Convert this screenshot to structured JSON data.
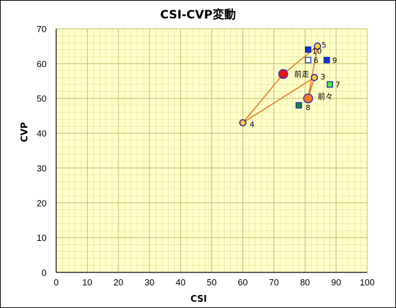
{
  "chart_data": {
    "type": "scatter",
    "title": "CSI-CVP変動",
    "xlabel": "CSI",
    "ylabel": "CVP",
    "xlim": [
      0,
      100
    ],
    "ylim": [
      0,
      70
    ],
    "xticks": [
      "0",
      "10",
      "20",
      "30",
      "40",
      "50",
      "60",
      "70",
      "80",
      "90",
      "100"
    ],
    "yticks": [
      "0",
      "10",
      "20",
      "30",
      "40",
      "50",
      "60",
      "70"
    ],
    "grid": true,
    "plot_background": "#ffffc8",
    "major_grid_color": "#bdbd6a",
    "minor_grid_color": "#e0e0a0",
    "line_color": "#ee7722",
    "path": [
      "前走",
      "5",
      "前々",
      "3",
      "4",
      "前走"
    ],
    "points": [
      {
        "label": "前走",
        "x": 73,
        "y": 57,
        "shape": "circle",
        "fill": "#ee1111",
        "stroke": "#3333bb",
        "size": "large"
      },
      {
        "label": "前々",
        "x": 81,
        "y": 50,
        "shape": "circle",
        "fill": "#ff7722",
        "stroke": "#3333bb",
        "size": "large"
      },
      {
        "label": "3",
        "x": 83,
        "y": 56,
        "shape": "circle",
        "fill": "#ffcc33",
        "stroke": "#2222aa",
        "size": "small"
      },
      {
        "label": "4",
        "x": 60,
        "y": 43,
        "shape": "circle",
        "fill": "#ffcc33",
        "stroke": "#2222aa",
        "size": "small"
      },
      {
        "label": "5",
        "x": 84,
        "y": 65,
        "shape": "circle",
        "fill": "#ffcc33",
        "stroke": "#2222aa",
        "size": "small"
      },
      {
        "label": "6",
        "x": 81,
        "y": 61,
        "shape": "square",
        "fill": "#ffffff",
        "stroke": "#1133aa",
        "size": "small"
      },
      {
        "label": "7",
        "x": 88,
        "y": 54,
        "shape": "square",
        "fill": "#44ee44",
        "stroke": "#1133aa",
        "size": "small"
      },
      {
        "label": "8",
        "x": 78,
        "y": 48,
        "shape": "square",
        "fill": "#228833",
        "stroke": "#1133aa",
        "size": "small"
      },
      {
        "label": "9",
        "x": 87,
        "y": 61,
        "shape": "square",
        "fill": "#1133cc",
        "stroke": "#1133aa",
        "size": "small"
      },
      {
        "label": "10",
        "x": 81,
        "y": 64,
        "shape": "square",
        "fill": "#1133cc",
        "stroke": "#1133aa",
        "size": "small"
      }
    ]
  }
}
